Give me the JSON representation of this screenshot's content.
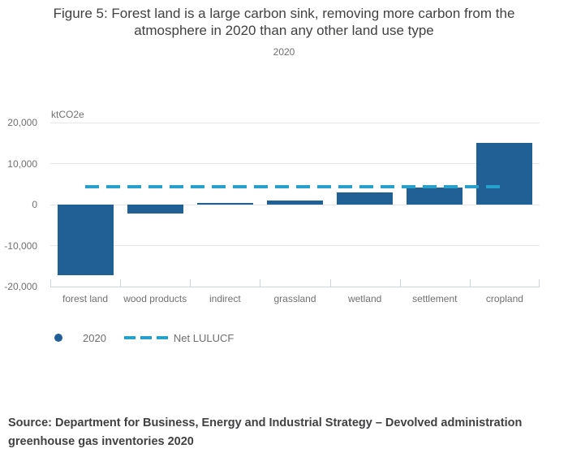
{
  "header": {
    "title": "Figure 5: Forest land is a large carbon sink, removing more carbon from the atmosphere in 2020 than any other land use type",
    "subtitle": "2020"
  },
  "legend": {
    "series_label": "2020",
    "net_label": "Net LULUCF"
  },
  "footer": {
    "source": "Source: Department for Business, Energy and Industrial Strategy – Devolved administration greenhouse gas inventories 2020"
  },
  "colors": {
    "bar": "#206095",
    "net_line": "#27a0cc",
    "grid": "#e6e6e6",
    "axis": "#ccd6de",
    "text_dark": "#414042",
    "text_gray": "#707071"
  },
  "chart_data": {
    "type": "bar",
    "title": "Figure 5: Forest land is a large carbon sink, removing more carbon from the atmosphere in 2020 than any other land use type",
    "subtitle": "2020",
    "ylabel": "ktCO2e",
    "xlabel": "",
    "ylim": [
      -20000,
      20000
    ],
    "grid": true,
    "legend_position": "bottom-left",
    "categories": [
      "forest land",
      "wood products",
      "indirect",
      "grassland",
      "wetland",
      "settlement",
      "cropland"
    ],
    "series": [
      {
        "name": "2020",
        "type": "bar",
        "values": [
          -17300,
          -2200,
          300,
          1000,
          3000,
          4100,
          15000
        ]
      },
      {
        "name": "Net LULUCF",
        "type": "dashed-line",
        "value": 4400
      }
    ],
    "yticks": [
      {
        "value": 20000,
        "label": "20,000"
      },
      {
        "value": 10000,
        "label": "10,000"
      },
      {
        "value": 0,
        "label": "0"
      },
      {
        "value": -10000,
        "label": "-10,000"
      },
      {
        "value": -20000,
        "label": "-20,000"
      }
    ]
  }
}
